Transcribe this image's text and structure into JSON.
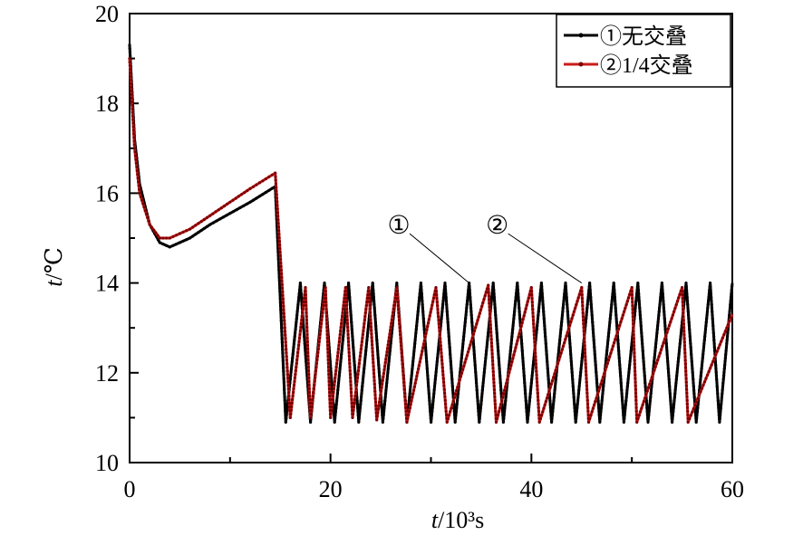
{
  "chart_data": {
    "type": "line",
    "xlabel_var": "t",
    "xlabel_unit": "/10³s",
    "ylabel_var": "t",
    "ylabel_unit": "/℃",
    "xlim": [
      0,
      60
    ],
    "ylim": [
      10,
      20
    ],
    "xticks": [
      0,
      20,
      40,
      60
    ],
    "yticks": [
      10,
      12,
      14,
      16,
      18,
      20
    ],
    "grid": false,
    "legend_position": "top-right",
    "series": [
      {
        "name": "①无交叠",
        "color": "#000000",
        "phase1": [
          [
            0,
            19.3
          ],
          [
            0.5,
            17.2
          ],
          [
            1,
            16.2
          ],
          [
            2,
            15.3
          ],
          [
            3,
            14.9
          ],
          [
            4,
            14.8
          ],
          [
            6,
            15.0
          ],
          [
            8,
            15.3
          ],
          [
            10,
            15.55
          ],
          [
            12,
            15.8
          ],
          [
            14.5,
            16.15
          ]
        ],
        "cycle_peaks_x": [
          14.5,
          17.0,
          19.4,
          21.8,
          24.2,
          26.6,
          29.0,
          31.4,
          33.8,
          36.2,
          38.6,
          41.0,
          43.4,
          45.8,
          48.2,
          50.6,
          53.0,
          55.4,
          57.8,
          60.0
        ],
        "cycle_min": 10.9,
        "cycle_max": 14.0
      },
      {
        "name": "②1/4交叠",
        "color": "#cc1b1b",
        "phase1": [
          [
            0,
            19.0
          ],
          [
            0.5,
            17.0
          ],
          [
            1,
            16.0
          ],
          [
            2,
            15.3
          ],
          [
            3,
            15.0
          ],
          [
            4,
            15.0
          ],
          [
            6,
            15.2
          ],
          [
            8,
            15.5
          ],
          [
            10,
            15.8
          ],
          [
            12,
            16.1
          ],
          [
            14.5,
            16.45
          ]
        ],
        "cycle_points": [
          [
            14.5,
            16.45
          ],
          [
            16.0,
            11.0
          ],
          [
            17.5,
            13.9
          ],
          [
            18.0,
            11.0
          ],
          [
            19.5,
            13.9
          ],
          [
            20.0,
            11.0
          ],
          [
            21.5,
            13.9
          ],
          [
            22.2,
            11.0
          ],
          [
            23.8,
            13.9
          ],
          [
            24.6,
            10.95
          ],
          [
            26.6,
            13.9
          ],
          [
            27.6,
            10.9
          ],
          [
            30.5,
            13.9
          ],
          [
            31.6,
            10.9
          ],
          [
            35.7,
            13.95
          ],
          [
            36.5,
            10.9
          ],
          [
            40.0,
            13.9
          ],
          [
            40.8,
            10.9
          ],
          [
            45.0,
            13.9
          ],
          [
            45.7,
            10.9
          ],
          [
            50.0,
            13.9
          ],
          [
            50.5,
            10.9
          ],
          [
            55.0,
            13.9
          ],
          [
            55.6,
            10.9
          ],
          [
            60.0,
            13.3
          ]
        ]
      }
    ],
    "annotations": [
      {
        "text": "①",
        "x": 26.8,
        "y": 15.3,
        "target": [
          33.8,
          14.0
        ]
      },
      {
        "text": "②",
        "x": 36.6,
        "y": 15.3,
        "target": [
          45.0,
          14.0
        ]
      }
    ]
  }
}
